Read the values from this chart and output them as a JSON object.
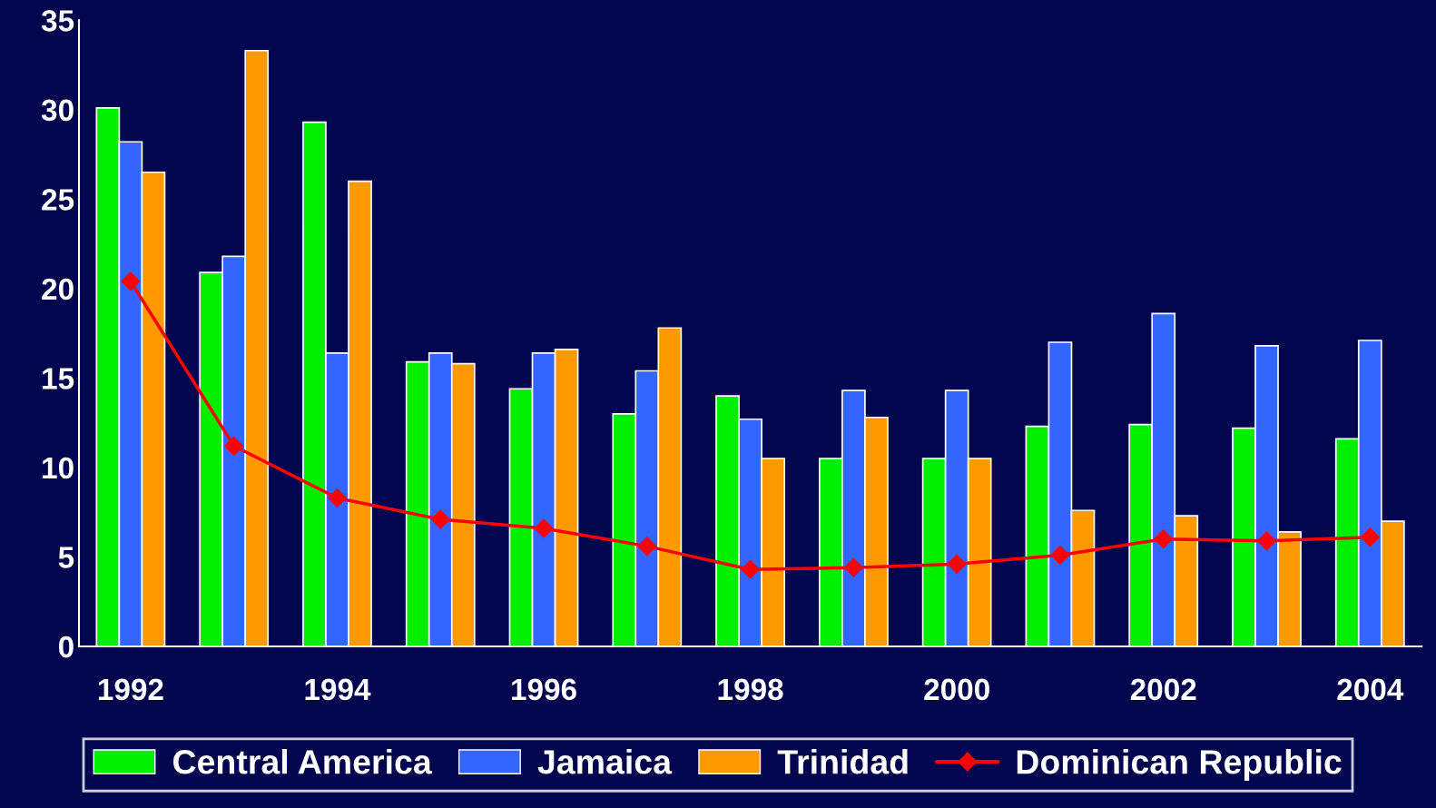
{
  "chart_data": {
    "type": "bar",
    "categories": [
      "1992",
      null,
      "1994",
      null,
      "1996",
      null,
      "1998",
      null,
      "2000",
      null,
      "2002",
      null,
      "2004"
    ],
    "series": [
      {
        "name": "Central America",
        "color": "#00ee00",
        "values": [
          30.1,
          20.9,
          29.3,
          15.9,
          14.4,
          13.0,
          14.0,
          10.5,
          10.5,
          12.3,
          12.4,
          12.2,
          11.6
        ]
      },
      {
        "name": "Jamaica",
        "color": "#3366ff",
        "values": [
          28.2,
          21.8,
          16.4,
          16.4,
          16.4,
          15.4,
          12.7,
          14.3,
          14.3,
          17.0,
          18.6,
          16.8,
          17.1
        ]
      },
      {
        "name": "Trinidad",
        "color": "#ff9900",
        "values": [
          26.5,
          33.3,
          26.0,
          15.8,
          16.6,
          17.8,
          10.5,
          12.8,
          10.5,
          7.6,
          7.3,
          6.4,
          7.0
        ]
      },
      {
        "name": "Dominican Republic",
        "color": "#ff0000",
        "type": "line",
        "marker": "diamond",
        "line_style": "solid",
        "values": [
          20.4,
          11.2,
          8.3,
          7.1,
          6.6,
          5.6,
          4.3,
          4.4,
          4.6,
          5.1,
          6.0,
          5.9,
          6.1
        ]
      }
    ],
    "ylim": [
      0,
      35
    ],
    "yticks": [
      0,
      5,
      10,
      15,
      20,
      25,
      30,
      35
    ],
    "grid": false,
    "legend": "bottom"
  }
}
